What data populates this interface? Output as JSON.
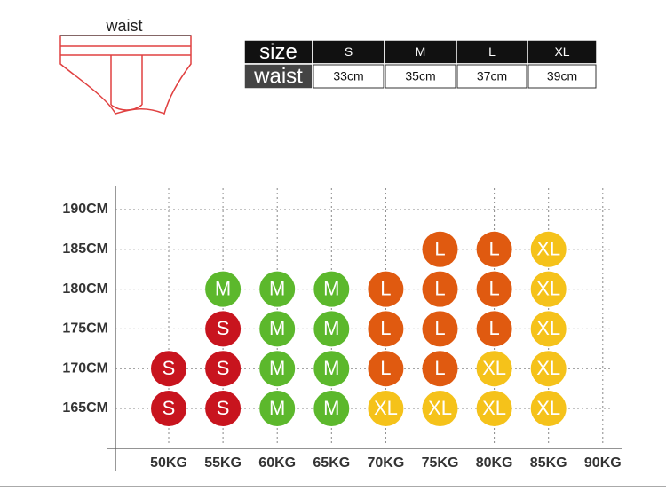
{
  "waist_label": "waist",
  "size_table": {
    "rows": [
      [
        "size",
        "S",
        "M",
        "L",
        "XL"
      ],
      [
        "waist",
        "33cm",
        "35cm",
        "37cm",
        "39cm"
      ]
    ]
  },
  "grid": {
    "heights": [
      "190CM",
      "185CM",
      "180CM",
      "175CM",
      "170CM",
      "165CM"
    ],
    "weights": [
      "50KG",
      "55KG",
      "60KG",
      "65KG",
      "70KG",
      "75KG",
      "80KG",
      "85KG",
      "90KG"
    ],
    "colors": {
      "S": "#c8141e",
      "M": "#5cb82c",
      "L": "#e05a10",
      "XL": "#f5c21a"
    },
    "rows": [
      [
        null,
        null,
        null,
        null,
        null,
        null,
        null,
        null,
        null
      ],
      [
        null,
        null,
        null,
        null,
        null,
        "L",
        "L",
        "XL",
        null
      ],
      [
        null,
        "M",
        "M",
        "M",
        "L",
        "L",
        "L",
        "XL",
        null
      ],
      [
        null,
        "S",
        "M",
        "M",
        "L",
        "L",
        "L",
        "XL",
        null
      ],
      [
        "S",
        "S",
        "M",
        "M",
        "L",
        "L",
        "XL",
        "XL",
        null
      ],
      [
        "S",
        "S",
        "M",
        "M",
        "XL",
        "XL",
        "XL",
        "XL",
        null
      ]
    ]
  }
}
